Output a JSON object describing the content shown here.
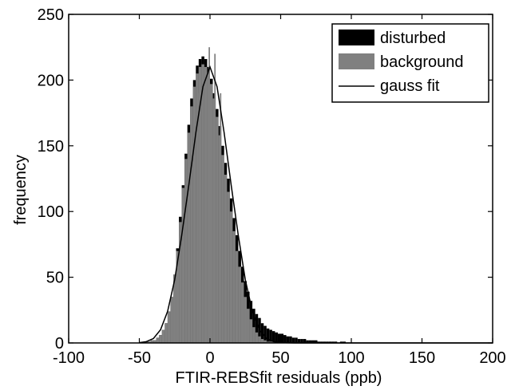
{
  "chart_data": {
    "type": "bar",
    "subtype": "overlapping-histogram",
    "title": "",
    "xlabel": "FTIR-REBSfit residuals (ppb)",
    "ylabel": "frequency",
    "xlim": [
      -100,
      200
    ],
    "ylim": [
      0,
      250
    ],
    "xticks": [
      -100,
      -50,
      0,
      50,
      100,
      150,
      200
    ],
    "yticks": [
      0,
      50,
      100,
      150,
      200,
      250
    ],
    "grid": false,
    "legend_position": "top-right",
    "bin_width": 2,
    "series": [
      {
        "name": "disturbed",
        "kind": "histogram",
        "color": "#000000",
        "bin_starts": [
          -46,
          -44,
          -42,
          -40,
          -38,
          -36,
          -34,
          -32,
          -30,
          -28,
          -26,
          -24,
          -22,
          -20,
          -18,
          -16,
          -14,
          -12,
          -10,
          -8,
          -6,
          -4,
          -2,
          0,
          2,
          4,
          6,
          8,
          10,
          12,
          14,
          16,
          18,
          20,
          22,
          24,
          26,
          28,
          30,
          32,
          34,
          36,
          38,
          40,
          42,
          44,
          46,
          48,
          50,
          52,
          54,
          56,
          58,
          60,
          62,
          64,
          66,
          68,
          70,
          72,
          74,
          76,
          78,
          80,
          82,
          84,
          86,
          88,
          90,
          92,
          94
        ],
        "counts": [
          1,
          1,
          2,
          2,
          4,
          6,
          10,
          15,
          24,
          35,
          52,
          72,
          96,
          120,
          144,
          166,
          186,
          200,
          211,
          216,
          218,
          216,
          210,
          201,
          190,
          178,
          165,
          150,
          137,
          125,
          110,
          95,
          82,
          70,
          58,
          47,
          39,
          32,
          26,
          22,
          19,
          15,
          13,
          11,
          10,
          9,
          8,
          7,
          7,
          6,
          5,
          5,
          4,
          4,
          3,
          3,
          3,
          2,
          2,
          2,
          2,
          1,
          1,
          1,
          1,
          1,
          1,
          1,
          0,
          1,
          1
        ]
      },
      {
        "name": "background",
        "kind": "histogram",
        "color": "#808080",
        "bin_starts": [
          -46,
          -44,
          -42,
          -40,
          -38,
          -36,
          -34,
          -32,
          -30,
          -28,
          -26,
          -24,
          -22,
          -20,
          -18,
          -16,
          -14,
          -12,
          -10,
          -8,
          -6,
          -4,
          -2,
          0,
          2,
          4,
          6,
          8,
          10,
          12,
          14,
          16,
          18,
          20,
          22,
          24,
          26,
          28,
          30,
          32,
          34,
          36,
          38,
          40,
          42,
          44,
          46,
          48,
          50
        ],
        "counts": [
          1,
          1,
          2,
          2,
          4,
          6,
          10,
          15,
          24,
          35,
          52,
          70,
          92,
          118,
          140,
          160,
          180,
          195,
          205,
          210,
          212,
          210,
          205,
          197,
          186,
          172,
          158,
          143,
          128,
          115,
          100,
          85,
          70,
          58,
          46,
          35,
          26,
          18,
          12,
          8,
          5,
          3,
          2,
          1,
          1,
          1,
          0,
          0,
          0
        ],
        "spikes": [
          {
            "x": -1,
            "count": 225
          },
          {
            "x": 3,
            "count": 220
          },
          {
            "x": -9,
            "count": 190
          },
          {
            "x": 7,
            "count": 190
          }
        ]
      },
      {
        "name": "gauss fit",
        "kind": "line",
        "color": "#000000",
        "x": [
          -50,
          -45,
          -40,
          -35,
          -30,
          -25,
          -20,
          -15,
          -10,
          -5,
          0,
          5,
          10,
          15,
          20,
          25,
          30,
          35,
          40,
          45,
          50,
          60,
          80,
          100,
          150,
          200
        ],
        "y": [
          0.2,
          1,
          3.4,
          10,
          24,
          48,
          82,
          120,
          160,
          195,
          210,
          195,
          160,
          120,
          82,
          48,
          24,
          10,
          3.4,
          1,
          0.2,
          0,
          0,
          0,
          0,
          0
        ]
      }
    ]
  }
}
